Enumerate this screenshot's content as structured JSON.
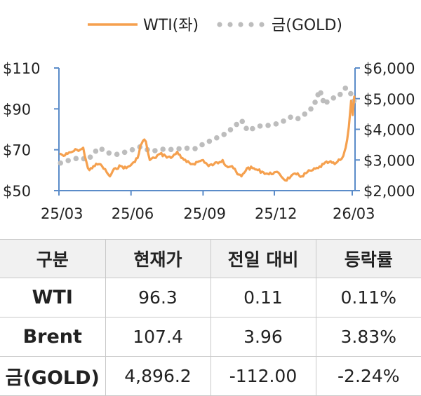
{
  "chart_data": {
    "type": "line",
    "legend": {
      "placement": "top-center",
      "entries": [
        "WTI(좌)",
        "금(GOLD)"
      ]
    },
    "x_ticks": [
      "25/03",
      "25/06",
      "25/09",
      "25/12",
      "26/03"
    ],
    "y_left": {
      "ticks": [
        "$110",
        "$90",
        "$70",
        "$50"
      ],
      "range": [
        50,
        110
      ]
    },
    "y_right": {
      "ticks": [
        "$6,000",
        "$5,000",
        "$4,000",
        "$3,000",
        "$2,000"
      ],
      "range": [
        2000,
        6000
      ]
    },
    "series": [
      {
        "name": "WTI(좌)",
        "axis": "left",
        "style": "solid",
        "color": "#f5a04e",
        "points": [
          [
            "2025-03-03",
            68
          ],
          [
            "2025-03-07",
            67
          ],
          [
            "2025-03-12",
            68
          ],
          [
            "2025-03-18",
            69
          ],
          [
            "2025-03-24",
            70
          ],
          [
            "2025-03-28",
            70
          ],
          [
            "2025-04-01",
            71
          ],
          [
            "2025-04-03",
            67
          ],
          [
            "2025-04-07",
            61
          ],
          [
            "2025-04-09",
            60
          ],
          [
            "2025-04-14",
            62
          ],
          [
            "2025-04-21",
            63
          ],
          [
            "2025-04-25",
            62
          ],
          [
            "2025-05-01",
            59
          ],
          [
            "2025-05-05",
            57
          ],
          [
            "2025-05-12",
            61
          ],
          [
            "2025-05-19",
            62
          ],
          [
            "2025-05-26",
            61
          ],
          [
            "2025-06-02",
            63
          ],
          [
            "2025-06-06",
            64
          ],
          [
            "2025-06-11",
            68
          ],
          [
            "2025-06-13",
            72
          ],
          [
            "2025-06-18",
            75
          ],
          [
            "2025-06-20",
            74
          ],
          [
            "2025-06-23",
            68
          ],
          [
            "2025-06-25",
            65
          ],
          [
            "2025-07-01",
            66
          ],
          [
            "2025-07-08",
            68
          ],
          [
            "2025-07-15",
            67
          ],
          [
            "2025-07-22",
            66
          ],
          [
            "2025-07-30",
            69
          ],
          [
            "2025-08-04",
            66
          ],
          [
            "2025-08-11",
            64
          ],
          [
            "2025-08-18",
            63
          ],
          [
            "2025-08-25",
            64
          ],
          [
            "2025-09-01",
            65
          ],
          [
            "2025-09-08",
            62
          ],
          [
            "2025-09-15",
            63
          ],
          [
            "2025-09-22",
            64
          ],
          [
            "2025-09-26",
            65
          ],
          [
            "2025-10-01",
            62
          ],
          [
            "2025-10-08",
            62
          ],
          [
            "2025-10-15",
            58
          ],
          [
            "2025-10-20",
            57
          ],
          [
            "2025-10-27",
            61
          ],
          [
            "2025-11-03",
            61
          ],
          [
            "2025-11-10",
            60
          ],
          [
            "2025-11-17",
            59
          ],
          [
            "2025-11-24",
            58
          ],
          [
            "2025-12-01",
            59
          ],
          [
            "2025-12-08",
            58
          ],
          [
            "2025-12-15",
            55
          ],
          [
            "2025-12-22",
            57
          ],
          [
            "2025-12-29",
            58
          ],
          [
            "2026-01-05",
            57
          ],
          [
            "2026-01-12",
            59
          ],
          [
            "2026-01-19",
            60
          ],
          [
            "2026-01-26",
            61
          ],
          [
            "2026-02-02",
            63
          ],
          [
            "2026-02-09",
            64
          ],
          [
            "2026-02-16",
            63
          ],
          [
            "2026-02-23",
            65
          ],
          [
            "2026-02-27",
            67
          ],
          [
            "2026-03-02",
            71
          ],
          [
            "2026-03-04",
            75
          ],
          [
            "2026-03-06",
            81
          ],
          [
            "2026-03-09",
            94
          ],
          [
            "2026-03-11",
            87
          ],
          [
            "2026-03-13",
            96
          ]
        ]
      },
      {
        "name": "금(GOLD)",
        "axis": "right",
        "style": "dotted",
        "color": "#bdbdbd",
        "points": [
          [
            "2025-03-03",
            2900
          ],
          [
            "2025-03-14",
            2990
          ],
          [
            "2025-03-28",
            3080
          ],
          [
            "2025-04-07",
            3000
          ],
          [
            "2025-04-14",
            3220
          ],
          [
            "2025-04-22",
            3400
          ],
          [
            "2025-05-01",
            3240
          ],
          [
            "2025-05-15",
            3180
          ],
          [
            "2025-05-30",
            3300
          ],
          [
            "2025-06-13",
            3430
          ],
          [
            "2025-06-27",
            3280
          ],
          [
            "2025-07-11",
            3350
          ],
          [
            "2025-07-25",
            3340
          ],
          [
            "2025-08-08",
            3390
          ],
          [
            "2025-08-22",
            3370
          ],
          [
            "2025-09-02",
            3530
          ],
          [
            "2025-09-15",
            3680
          ],
          [
            "2025-09-30",
            3860
          ],
          [
            "2025-10-08",
            4030
          ],
          [
            "2025-10-20",
            4300
          ],
          [
            "2025-10-28",
            3950
          ],
          [
            "2025-11-10",
            4100
          ],
          [
            "2025-11-24",
            4130
          ],
          [
            "2025-12-08",
            4200
          ],
          [
            "2025-12-22",
            4400
          ],
          [
            "2025-12-30",
            4330
          ],
          [
            "2026-01-12",
            4550
          ],
          [
            "2026-01-20",
            4750
          ],
          [
            "2026-01-28",
            5280
          ],
          [
            "2026-02-03",
            4800
          ],
          [
            "2026-02-10",
            5000
          ],
          [
            "2026-02-20",
            5050
          ],
          [
            "2026-03-02",
            5350
          ],
          [
            "2026-03-09",
            5150
          ],
          [
            "2026-03-13",
            4896
          ]
        ]
      }
    ]
  },
  "table": {
    "headers": [
      "구분",
      "현재가",
      "전일 대비",
      "등락률"
    ],
    "rows": [
      [
        "WTI",
        "96.3",
        "0.11",
        "0.11%"
      ],
      [
        "Brent",
        "107.4",
        "3.96",
        "3.83%"
      ],
      [
        "금(GOLD)",
        "4,896.2",
        "-112.00",
        "-2.24%"
      ]
    ]
  }
}
